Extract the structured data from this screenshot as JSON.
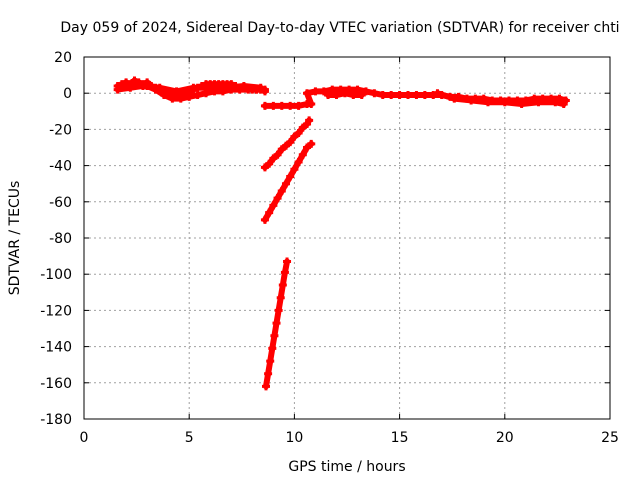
{
  "chart_data": {
    "type": "scatter",
    "title": "Day 059 of 2024, Sidereal Day-to-day VTEC variation (SDTVAR) for receiver chti",
    "xlabel": "GPS time / hours",
    "ylabel": "SDTVAR / TECUs",
    "xlim": [
      0,
      25
    ],
    "ylim": [
      -180,
      20
    ],
    "xticks": [
      0,
      5,
      10,
      15,
      20,
      25
    ],
    "yticks": [
      20,
      0,
      -20,
      -40,
      -60,
      -80,
      -100,
      -120,
      -140,
      -160,
      -180
    ],
    "grid": true,
    "marker_color": "#ff0000",
    "series": [
      {
        "points": [
          [
            1.6,
            4
          ],
          [
            1.8,
            5
          ],
          [
            2.0,
            6
          ],
          [
            2.2,
            5
          ],
          [
            2.4,
            7
          ],
          [
            2.6,
            6
          ],
          [
            2.8,
            5
          ],
          [
            3.0,
            6
          ],
          [
            3.2,
            4
          ],
          [
            3.4,
            3
          ],
          [
            3.6,
            2
          ],
          [
            3.8,
            1
          ],
          [
            4.0,
            0
          ],
          [
            4.2,
            -1
          ],
          [
            4.4,
            -2
          ],
          [
            4.6,
            -1
          ],
          [
            4.8,
            0
          ],
          [
            5.0,
            1
          ],
          [
            5.2,
            2
          ],
          [
            5.4,
            3
          ],
          [
            5.6,
            4
          ],
          [
            5.8,
            5
          ],
          [
            6.0,
            5
          ],
          [
            6.2,
            5
          ],
          [
            6.4,
            5
          ],
          [
            6.6,
            5
          ],
          [
            6.8,
            5
          ],
          [
            7.0,
            5
          ],
          [
            7.2,
            4
          ],
          [
            7.4,
            3
          ],
          [
            7.6,
            3
          ],
          [
            7.8,
            3
          ],
          [
            8.0,
            2
          ],
          [
            8.2,
            2
          ],
          [
            8.4,
            2
          ],
          [
            8.6,
            1
          ],
          [
            3.0,
            4
          ],
          [
            3.4,
            2
          ],
          [
            3.8,
            -1
          ],
          [
            4.2,
            -3
          ],
          [
            4.6,
            -3
          ],
          [
            5.0,
            -2
          ],
          [
            5.4,
            -1
          ],
          [
            5.8,
            0
          ],
          [
            6.2,
            1
          ],
          [
            6.6,
            1
          ],
          [
            7.0,
            2
          ],
          [
            7.4,
            2
          ],
          [
            7.8,
            2
          ],
          [
            8.2,
            2
          ],
          [
            8.6,
            2
          ],
          [
            1.6,
            2
          ],
          [
            2.2,
            3
          ],
          [
            2.8,
            4
          ],
          [
            3.6,
            3
          ],
          [
            4.4,
            1
          ],
          [
            5.2,
            3
          ],
          [
            6.0,
            3
          ],
          [
            6.8,
            3
          ],
          [
            7.6,
            4
          ],
          [
            8.4,
            3
          ]
        ]
      },
      {
        "points": [
          [
            8.6,
            -7
          ],
          [
            9.0,
            -7
          ],
          [
            9.4,
            -7
          ],
          [
            9.8,
            -7
          ],
          [
            10.2,
            -7
          ],
          [
            10.6,
            -6
          ],
          [
            10.8,
            -6
          ],
          [
            10.6,
            0
          ],
          [
            11.0,
            1
          ],
          [
            11.4,
            1
          ],
          [
            11.8,
            2
          ],
          [
            12.2,
            2
          ],
          [
            12.6,
            2
          ],
          [
            13.0,
            2
          ],
          [
            13.4,
            1
          ],
          [
            13.8,
            0
          ],
          [
            14.2,
            -1
          ],
          [
            14.6,
            -1
          ],
          [
            15.0,
            -1
          ],
          [
            15.4,
            -1
          ],
          [
            15.8,
            -1
          ],
          [
            16.2,
            -1
          ],
          [
            16.6,
            -1
          ],
          [
            17.0,
            -1
          ],
          [
            17.4,
            -2
          ],
          [
            17.8,
            -2
          ],
          [
            18.2,
            -3
          ],
          [
            18.6,
            -3
          ],
          [
            19.0,
            -3
          ],
          [
            19.4,
            -4
          ],
          [
            19.8,
            -4
          ],
          [
            20.2,
            -4
          ],
          [
            20.6,
            -4
          ],
          [
            21.0,
            -4
          ],
          [
            21.4,
            -3
          ],
          [
            21.8,
            -3
          ],
          [
            22.2,
            -3
          ],
          [
            22.6,
            -3
          ],
          [
            22.9,
            -4
          ],
          [
            11.6,
            -1
          ],
          [
            12.0,
            -1
          ],
          [
            12.4,
            0
          ],
          [
            12.8,
            -1
          ],
          [
            13.2,
            -1
          ],
          [
            16.8,
            0
          ],
          [
            17.6,
            -3
          ],
          [
            18.4,
            -4
          ],
          [
            19.2,
            -5
          ],
          [
            20.0,
            -5
          ],
          [
            20.8,
            -6
          ],
          [
            21.6,
            -5
          ],
          [
            22.4,
            -5
          ],
          [
            22.8,
            -6
          ]
        ]
      },
      {
        "points": [
          [
            8.6,
            -41
          ],
          [
            8.8,
            -39
          ],
          [
            9.0,
            -36
          ],
          [
            9.2,
            -34
          ],
          [
            9.4,
            -31
          ],
          [
            9.6,
            -29
          ],
          [
            9.8,
            -27
          ],
          [
            10.0,
            -24
          ],
          [
            10.2,
            -22
          ],
          [
            10.4,
            -19
          ],
          [
            10.6,
            -17
          ],
          [
            10.7,
            -15
          ]
        ]
      },
      {
        "points": [
          [
            8.6,
            -70
          ],
          [
            8.8,
            -66
          ],
          [
            9.0,
            -62
          ],
          [
            9.2,
            -58
          ],
          [
            9.4,
            -54
          ],
          [
            9.6,
            -50
          ],
          [
            9.8,
            -46
          ],
          [
            10.0,
            -42
          ],
          [
            10.2,
            -38
          ],
          [
            10.4,
            -34
          ],
          [
            10.6,
            -30
          ],
          [
            10.8,
            -28
          ]
        ]
      },
      {
        "points": [
          [
            8.65,
            -162
          ],
          [
            8.75,
            -155
          ],
          [
            8.85,
            -148
          ],
          [
            8.95,
            -141
          ],
          [
            9.05,
            -134
          ],
          [
            9.15,
            -127
          ],
          [
            9.25,
            -120
          ],
          [
            9.35,
            -113
          ],
          [
            9.45,
            -106
          ],
          [
            9.55,
            -99
          ],
          [
            9.65,
            -93
          ]
        ]
      }
    ]
  }
}
